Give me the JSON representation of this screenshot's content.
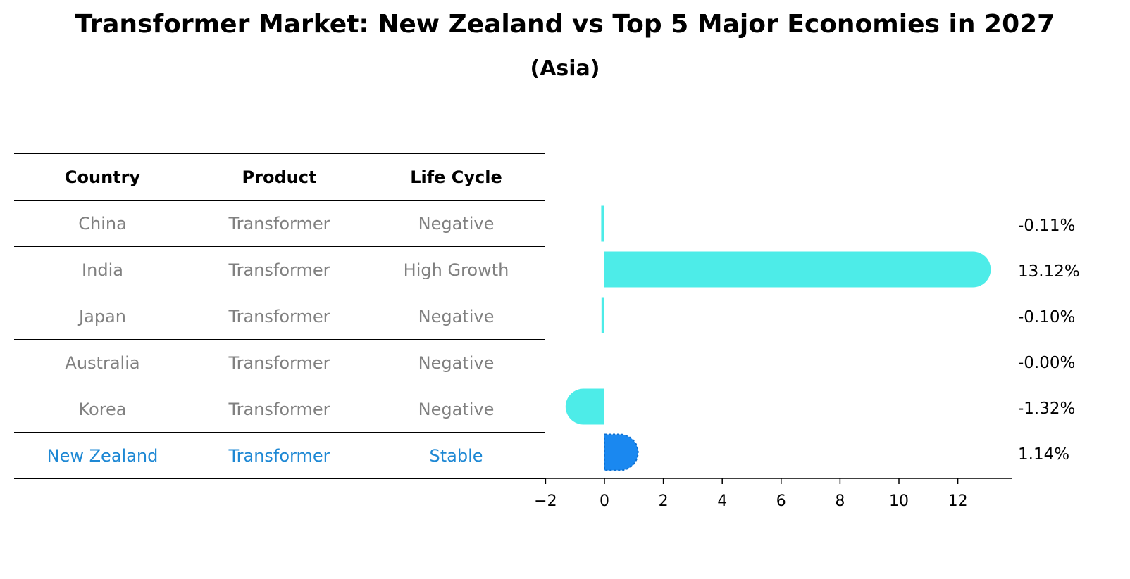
{
  "header": {
    "title": "Transformer Market: New Zealand vs Top 5 Major Economies in 2027",
    "subtitle": "(Asia)"
  },
  "table": {
    "columns": [
      "Country",
      "Product",
      "Life Cycle"
    ],
    "rows": [
      {
        "country": "China",
        "product": "Transformer",
        "life_cycle": "Negative"
      },
      {
        "country": "India",
        "product": "Transformer",
        "life_cycle": "High Growth"
      },
      {
        "country": "Japan",
        "product": "Transformer",
        "life_cycle": "Negative"
      },
      {
        "country": "Australia",
        "product": "Transformer",
        "life_cycle": "Negative"
      },
      {
        "country": "Korea",
        "product": "Transformer",
        "life_cycle": "Negative"
      },
      {
        "country": "New Zealand",
        "product": "Transformer",
        "life_cycle": "Stable"
      }
    ]
  },
  "colors": {
    "bar": "#4dece8",
    "highlight_bar": "#1a88f0",
    "highlight_text": "#1e88d4",
    "muted_text": "#808080"
  },
  "chart_data": {
    "type": "bar",
    "orientation": "horizontal",
    "title": "Transformer Market: New Zealand vs Top 5 Major Economies in 2027",
    "subtitle": "(Asia)",
    "categories": [
      "China",
      "India",
      "Japan",
      "Australia",
      "Korea",
      "New Zealand"
    ],
    "values": [
      -0.11,
      13.12,
      -0.1,
      -0.0,
      -1.32,
      1.14
    ],
    "value_labels": [
      "-0.11%",
      "13.12%",
      "-0.10%",
      "-0.00%",
      "-1.32%",
      "1.14%"
    ],
    "highlight": "New Zealand",
    "xlim": [
      -2,
      13.8
    ],
    "xticks": [
      -2,
      0,
      2,
      4,
      6,
      8,
      10,
      12
    ],
    "xtick_labels": [
      "−2",
      "0",
      "2",
      "4",
      "6",
      "8",
      "10",
      "12"
    ],
    "xlabel": "",
    "ylabel": "",
    "grid": false
  }
}
